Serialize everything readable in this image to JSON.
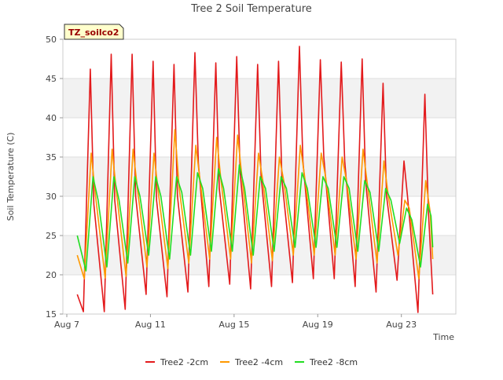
{
  "chart_data": {
    "type": "line",
    "title": "Tree 2 Soil Temperature",
    "xlabel": "Time",
    "ylabel": "Soil Temperature (C)",
    "annotation": "TZ_soilco2",
    "xlim": [
      "2023-08-07",
      "2023-08-25"
    ],
    "ylim": [
      15,
      50
    ],
    "yticks": [
      15,
      20,
      25,
      30,
      35,
      40,
      45,
      50
    ],
    "xticks": [
      {
        "label": "Aug 7",
        "date": "2023-08-07"
      },
      {
        "label": "Aug 11",
        "date": "2023-08-11"
      },
      {
        "label": "Aug 15",
        "date": "2023-08-15"
      },
      {
        "label": "Aug 19",
        "date": "2023-08-19"
      },
      {
        "label": "Aug 23",
        "date": "2023-08-23"
      }
    ],
    "legend_position": "bottom",
    "grid": true,
    "series": [
      {
        "name": "Tree2 -2cm",
        "color": "#e31a1c",
        "points": [
          [
            "2023-08-07T12:00",
            17.5
          ],
          [
            "2023-08-07T19:00",
            15.3
          ],
          [
            "2023-08-08T03:00",
            46.2
          ],
          [
            "2023-08-08T07:00",
            29.0
          ],
          [
            "2023-08-08T19:00",
            15.3
          ],
          [
            "2023-08-09T03:00",
            48.1
          ],
          [
            "2023-08-09T07:00",
            29.5
          ],
          [
            "2023-08-09T19:00",
            15.6
          ],
          [
            "2023-08-10T03:00",
            48.1
          ],
          [
            "2023-08-10T07:00",
            30.0
          ],
          [
            "2023-08-10T19:00",
            17.5
          ],
          [
            "2023-08-11T03:00",
            47.2
          ],
          [
            "2023-08-11T07:00",
            29.5
          ],
          [
            "2023-08-11T19:00",
            17.2
          ],
          [
            "2023-08-12T03:00",
            46.8
          ],
          [
            "2023-08-12T07:00",
            30.0
          ],
          [
            "2023-08-12T19:00",
            17.8
          ],
          [
            "2023-08-13T03:00",
            48.3
          ],
          [
            "2023-08-13T07:00",
            34.2
          ],
          [
            "2023-08-13T19:00",
            18.5
          ],
          [
            "2023-08-14T03:00",
            47.0
          ],
          [
            "2023-08-14T07:00",
            31.0
          ],
          [
            "2023-08-14T19:00",
            18.8
          ],
          [
            "2023-08-15T03:00",
            47.8
          ],
          [
            "2023-08-15T07:00",
            33.0
          ],
          [
            "2023-08-15T19:00",
            18.2
          ],
          [
            "2023-08-16T03:00",
            46.8
          ],
          [
            "2023-08-16T07:00",
            32.5
          ],
          [
            "2023-08-16T19:00",
            18.5
          ],
          [
            "2023-08-17T03:00",
            47.2
          ],
          [
            "2023-08-17T07:00",
            32.0
          ],
          [
            "2023-08-17T19:00",
            19.0
          ],
          [
            "2023-08-18T03:00",
            49.1
          ],
          [
            "2023-08-18T07:00",
            34.5
          ],
          [
            "2023-08-18T19:00",
            19.5
          ],
          [
            "2023-08-19T03:00",
            47.4
          ],
          [
            "2023-08-19T07:00",
            35.0
          ],
          [
            "2023-08-19T19:00",
            19.5
          ],
          [
            "2023-08-20T03:00",
            47.1
          ],
          [
            "2023-08-20T07:00",
            34.5
          ],
          [
            "2023-08-20T19:00",
            18.5
          ],
          [
            "2023-08-21T03:00",
            47.5
          ],
          [
            "2023-08-21T07:00",
            32.0
          ],
          [
            "2023-08-21T19:00",
            17.8
          ],
          [
            "2023-08-22T03:00",
            44.4
          ],
          [
            "2023-08-22T07:00",
            30.0
          ],
          [
            "2023-08-22T19:00",
            19.3
          ],
          [
            "2023-08-23T03:00",
            34.5
          ],
          [
            "2023-08-23T07:00",
            30.0
          ],
          [
            "2023-08-23T19:00",
            15.2
          ],
          [
            "2023-08-24T03:00",
            43.0
          ],
          [
            "2023-08-24T07:00",
            28.0
          ],
          [
            "2023-08-24T12:00",
            17.5
          ]
        ]
      },
      {
        "name": "Tree2 -4cm",
        "color": "#ff9900",
        "points": [
          [
            "2023-08-07T12:00",
            22.5
          ],
          [
            "2023-08-07T20:00",
            19.5
          ],
          [
            "2023-08-08T04:00",
            35.5
          ],
          [
            "2023-08-08T09:00",
            30.0
          ],
          [
            "2023-08-08T20:00",
            19.6
          ],
          [
            "2023-08-09T04:00",
            36.0
          ],
          [
            "2023-08-09T09:00",
            30.5
          ],
          [
            "2023-08-09T20:00",
            19.8
          ],
          [
            "2023-08-10T04:00",
            36.0
          ],
          [
            "2023-08-10T09:00",
            31.0
          ],
          [
            "2023-08-10T20:00",
            21.0
          ],
          [
            "2023-08-11T04:00",
            35.5
          ],
          [
            "2023-08-11T09:00",
            30.5
          ],
          [
            "2023-08-11T20:00",
            20.8
          ],
          [
            "2023-08-12T04:00",
            38.5
          ],
          [
            "2023-08-12T09:00",
            31.0
          ],
          [
            "2023-08-12T20:00",
            21.5
          ],
          [
            "2023-08-13T04:00",
            36.5
          ],
          [
            "2023-08-13T09:00",
            32.0
          ],
          [
            "2023-08-13T20:00",
            22.0
          ],
          [
            "2023-08-14T04:00",
            37.5
          ],
          [
            "2023-08-14T09:00",
            32.0
          ],
          [
            "2023-08-14T20:00",
            22.0
          ],
          [
            "2023-08-15T04:00",
            37.8
          ],
          [
            "2023-08-15T09:00",
            32.5
          ],
          [
            "2023-08-15T20:00",
            21.5
          ],
          [
            "2023-08-16T04:00",
            35.5
          ],
          [
            "2023-08-16T09:00",
            32.0
          ],
          [
            "2023-08-16T20:00",
            21.8
          ],
          [
            "2023-08-17T04:00",
            35.0
          ],
          [
            "2023-08-17T09:00",
            32.0
          ],
          [
            "2023-08-17T20:00",
            22.5
          ],
          [
            "2023-08-18T04:00",
            36.5
          ],
          [
            "2023-08-18T09:00",
            32.5
          ],
          [
            "2023-08-18T20:00",
            22.5
          ],
          [
            "2023-08-19T04:00",
            35.5
          ],
          [
            "2023-08-19T09:00",
            32.5
          ],
          [
            "2023-08-19T20:00",
            22.5
          ],
          [
            "2023-08-20T04:00",
            35.0
          ],
          [
            "2023-08-20T09:00",
            32.0
          ],
          [
            "2023-08-20T20:00",
            22.0
          ],
          [
            "2023-08-21T04:00",
            36.0
          ],
          [
            "2023-08-21T09:00",
            31.5
          ],
          [
            "2023-08-21T20:00",
            21.5
          ],
          [
            "2023-08-22T04:00",
            34.5
          ],
          [
            "2023-08-22T09:00",
            30.0
          ],
          [
            "2023-08-22T20:00",
            22.5
          ],
          [
            "2023-08-23T04:00",
            29.5
          ],
          [
            "2023-08-23T09:00",
            28.5
          ],
          [
            "2023-08-23T20:00",
            19.5
          ],
          [
            "2023-08-24T04:00",
            32.0
          ],
          [
            "2023-08-24T09:00",
            28.0
          ],
          [
            "2023-08-24T12:00",
            22.0
          ]
        ]
      },
      {
        "name": "Tree2 -8cm",
        "color": "#22dd22",
        "points": [
          [
            "2023-08-07T12:00",
            25.0
          ],
          [
            "2023-08-07T22:00",
            20.5
          ],
          [
            "2023-08-08T06:00",
            32.5
          ],
          [
            "2023-08-08T12:00",
            29.5
          ],
          [
            "2023-08-08T22:00",
            21.0
          ],
          [
            "2023-08-09T06:00",
            32.5
          ],
          [
            "2023-08-09T12:00",
            29.5
          ],
          [
            "2023-08-09T22:00",
            21.5
          ],
          [
            "2023-08-10T06:00",
            32.5
          ],
          [
            "2023-08-10T12:00",
            30.0
          ],
          [
            "2023-08-10T22:00",
            22.5
          ],
          [
            "2023-08-11T06:00",
            32.5
          ],
          [
            "2023-08-11T12:00",
            30.0
          ],
          [
            "2023-08-11T22:00",
            22.0
          ],
          [
            "2023-08-12T06:00",
            32.5
          ],
          [
            "2023-08-12T12:00",
            30.5
          ],
          [
            "2023-08-12T22:00",
            22.5
          ],
          [
            "2023-08-13T06:00",
            33.0
          ],
          [
            "2023-08-13T12:00",
            31.0
          ],
          [
            "2023-08-13T22:00",
            23.0
          ],
          [
            "2023-08-14T06:00",
            33.5
          ],
          [
            "2023-08-14T12:00",
            31.0
          ],
          [
            "2023-08-14T22:00",
            23.0
          ],
          [
            "2023-08-15T06:00",
            34.0
          ],
          [
            "2023-08-15T12:00",
            31.0
          ],
          [
            "2023-08-15T22:00",
            22.5
          ],
          [
            "2023-08-16T06:00",
            32.5
          ],
          [
            "2023-08-16T12:00",
            31.0
          ],
          [
            "2023-08-16T22:00",
            23.0
          ],
          [
            "2023-08-17T06:00",
            32.5
          ],
          [
            "2023-08-17T12:00",
            31.0
          ],
          [
            "2023-08-17T22:00",
            23.5
          ],
          [
            "2023-08-18T06:00",
            33.0
          ],
          [
            "2023-08-18T12:00",
            31.0
          ],
          [
            "2023-08-18T22:00",
            23.5
          ],
          [
            "2023-08-19T06:00",
            32.5
          ],
          [
            "2023-08-19T12:00",
            31.0
          ],
          [
            "2023-08-19T22:00",
            23.5
          ],
          [
            "2023-08-20T06:00",
            32.5
          ],
          [
            "2023-08-20T12:00",
            31.0
          ],
          [
            "2023-08-20T22:00",
            23.0
          ],
          [
            "2023-08-21T06:00",
            32.0
          ],
          [
            "2023-08-21T12:00",
            30.5
          ],
          [
            "2023-08-21T22:00",
            23.0
          ],
          [
            "2023-08-22T06:00",
            31.0
          ],
          [
            "2023-08-22T12:00",
            29.5
          ],
          [
            "2023-08-22T22:00",
            24.0
          ],
          [
            "2023-08-23T06:00",
            28.5
          ],
          [
            "2023-08-23T12:00",
            27.0
          ],
          [
            "2023-08-23T22:00",
            21.0
          ],
          [
            "2023-08-24T06:00",
            29.0
          ],
          [
            "2023-08-24T10:00",
            27.5
          ],
          [
            "2023-08-24T12:00",
            23.5
          ]
        ]
      }
    ]
  }
}
